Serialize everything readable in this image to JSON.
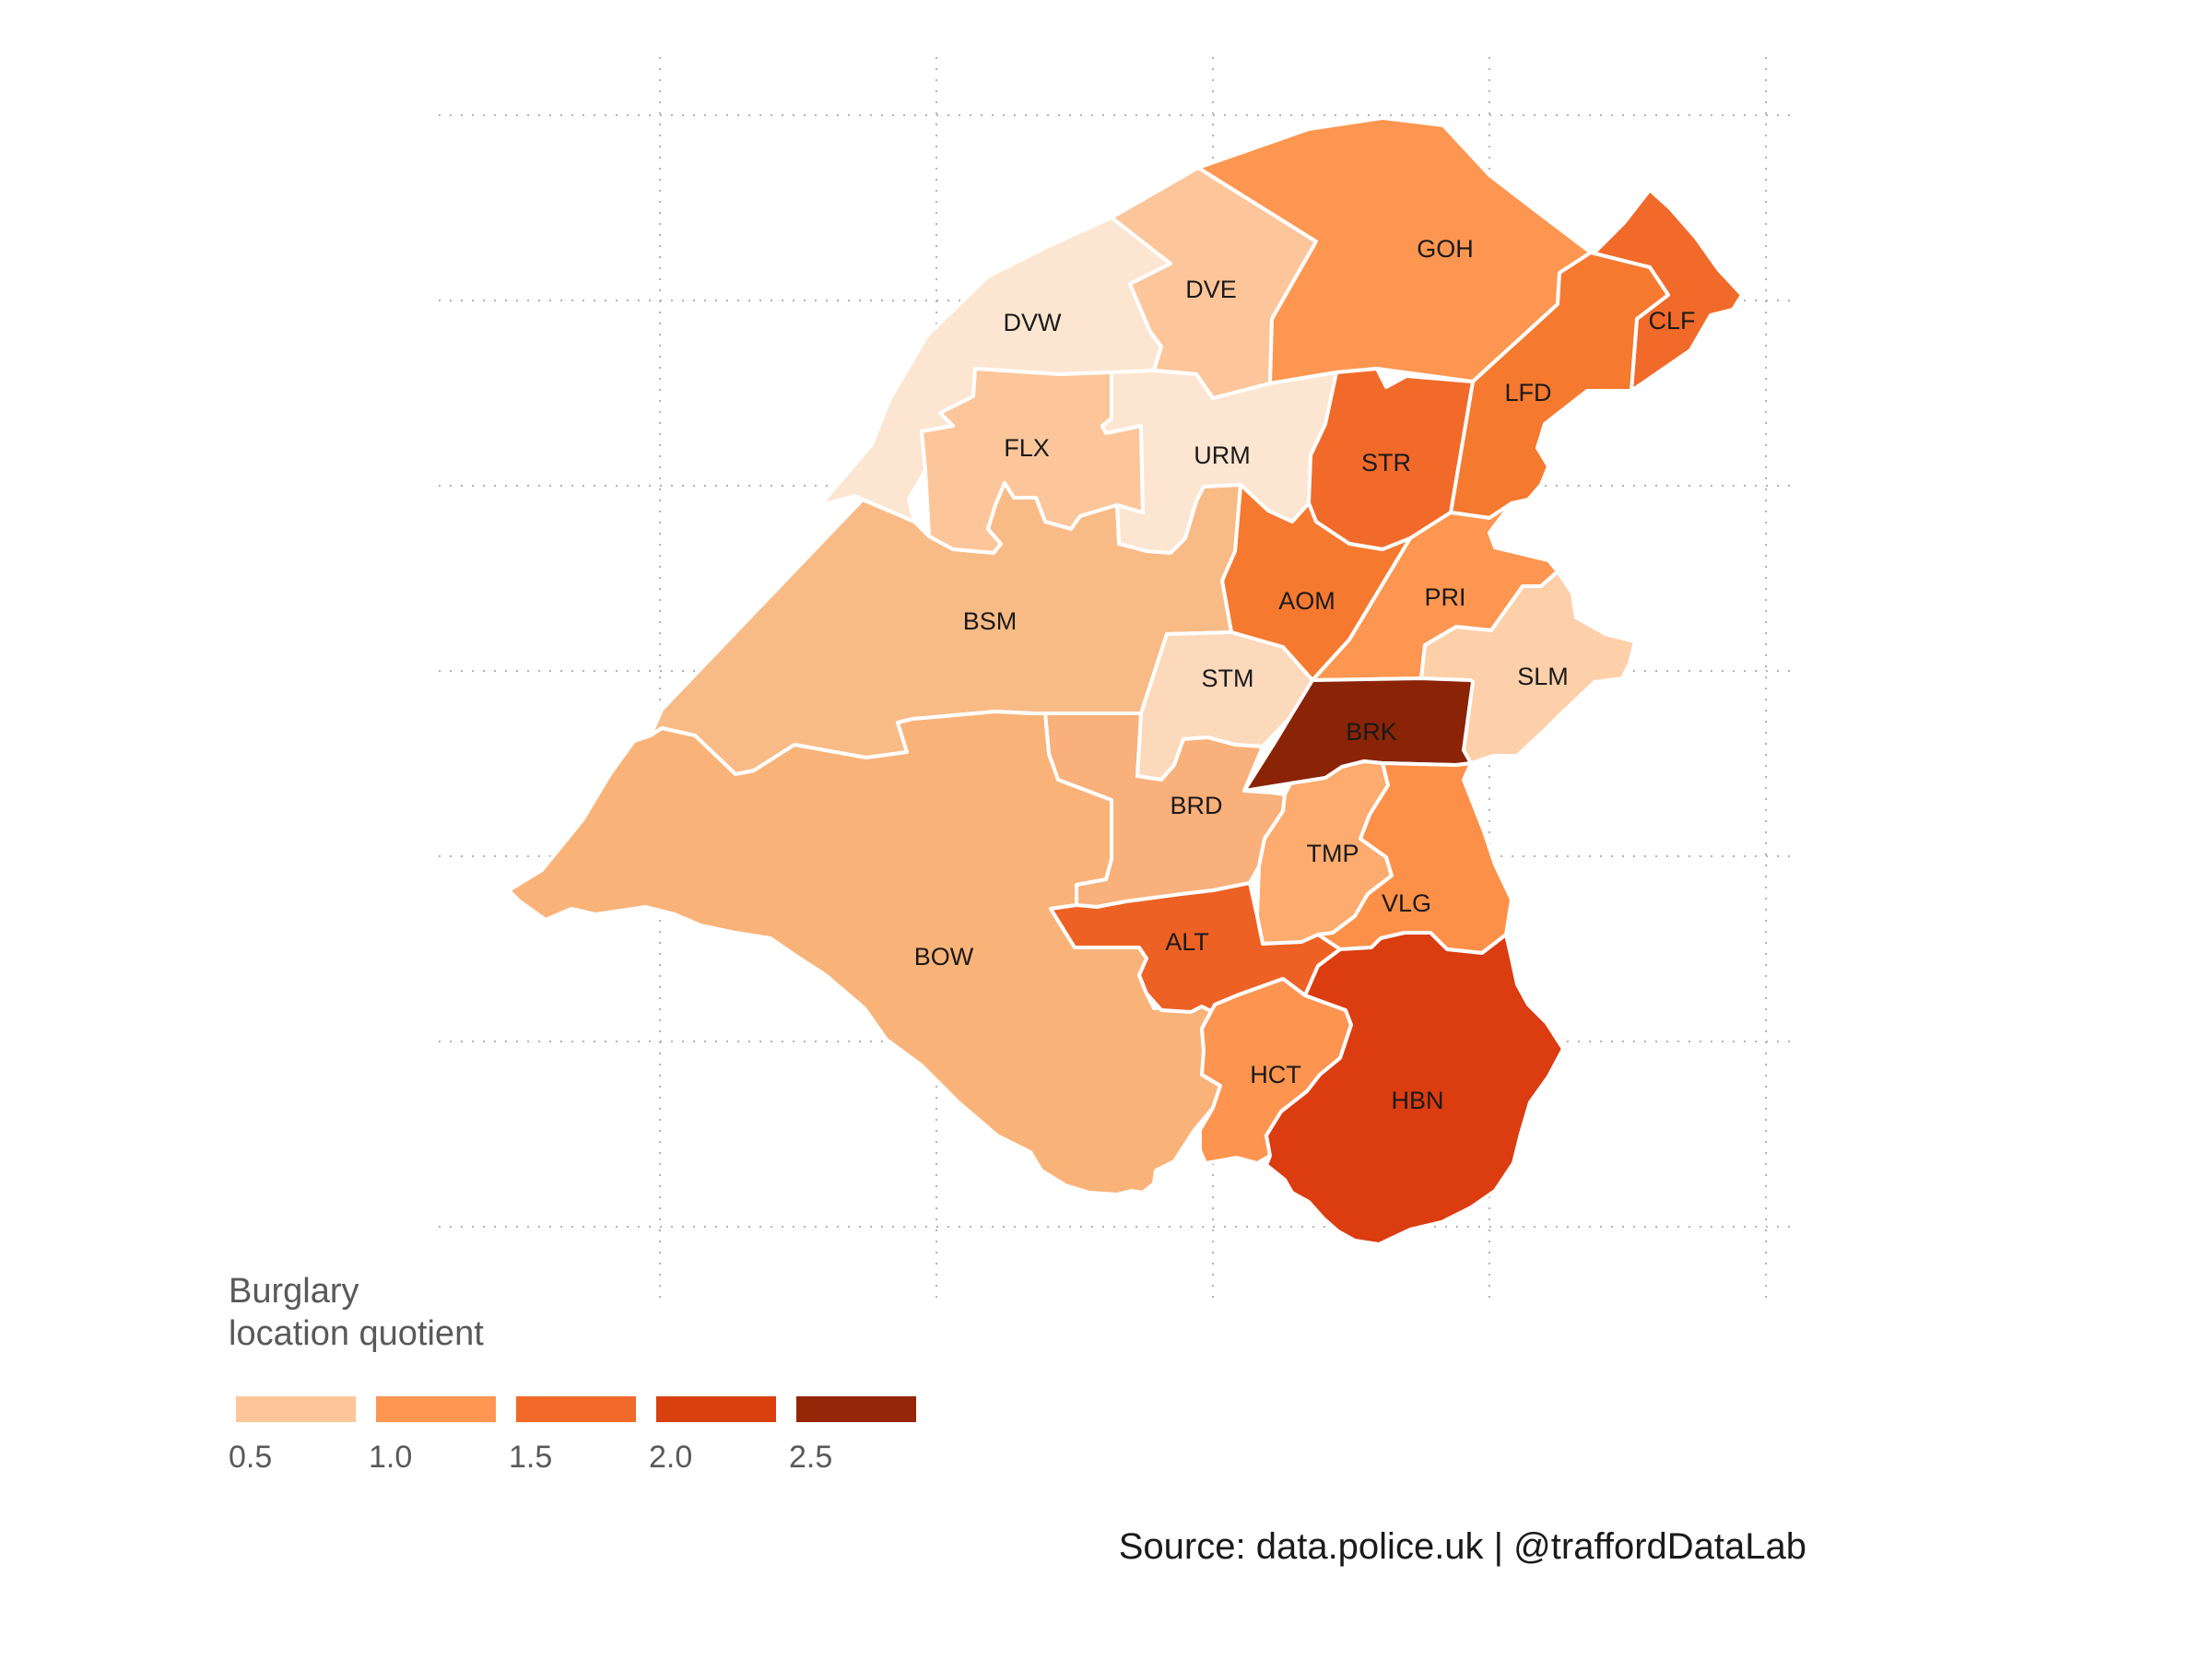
{
  "map": {
    "wards": [
      {
        "code": "DVW",
        "lq_band": "0.0–0.5",
        "color": "#fde6d1"
      },
      {
        "code": "DVE",
        "lq_band": "0.5–1.0",
        "color": "#fdc69a"
      },
      {
        "code": "GOH",
        "lq_band": "1.0–1.5",
        "color": "#fd9650"
      },
      {
        "code": "CLF",
        "lq_band": "1.5–2.0",
        "color": "#f16a2a"
      },
      {
        "code": "LFD",
        "lq_band": "1.5–2.0",
        "color": "#f5792f"
      },
      {
        "code": "FLX",
        "lq_band": "0.5–1.0",
        "color": "#fdc69a"
      },
      {
        "code": "URM",
        "lq_band": "0.0–0.5",
        "color": "#fde6d1"
      },
      {
        "code": "STR",
        "lq_band": "1.5–2.0",
        "color": "#f16a2a"
      },
      {
        "code": "AOM",
        "lq_band": "1.5–2.0",
        "color": "#f5792f"
      },
      {
        "code": "PRI",
        "lq_band": "1.0–1.5",
        "color": "#fd9650"
      },
      {
        "code": "BSM",
        "lq_band": "0.5–1.0",
        "color": "#f9bb86"
      },
      {
        "code": "STM",
        "lq_band": "0.5–1.0",
        "color": "#fdd9bb"
      },
      {
        "code": "SLM",
        "lq_band": "0.5–1.0",
        "color": "#fdd0aa"
      },
      {
        "code": "BRK",
        "lq_band": "2.5–3.0",
        "color": "#8b2407"
      },
      {
        "code": "BRD",
        "lq_band": "0.5–1.0",
        "color": "#f9b07a"
      },
      {
        "code": "TMP",
        "lq_band": "1.0–1.5",
        "color": "#fdab6e"
      },
      {
        "code": "BOW",
        "lq_band": "0.5–1.0",
        "color": "#f9b379"
      },
      {
        "code": "VLG",
        "lq_band": "1.0–1.5",
        "color": "#fd9048"
      },
      {
        "code": "ALT",
        "lq_band": "1.5–2.0",
        "color": "#ee6124"
      },
      {
        "code": "HCT",
        "lq_band": "1.0–1.5",
        "color": "#fd9450"
      },
      {
        "code": "HBN",
        "lq_band": "2.0–2.5",
        "color": "#db3c10"
      }
    ]
  },
  "legend": {
    "title_line1": "Burglary",
    "title_line2": "location quotient",
    "keys": [
      "#fdc69a",
      "#fd9650",
      "#f16a2a",
      "#d9400f",
      "#962608"
    ],
    "ticks": [
      "0.5",
      "1.0",
      "1.5",
      "2.0",
      "2.5"
    ]
  },
  "caption": "Source: data.police.uk  |  @traffordDataLab"
}
